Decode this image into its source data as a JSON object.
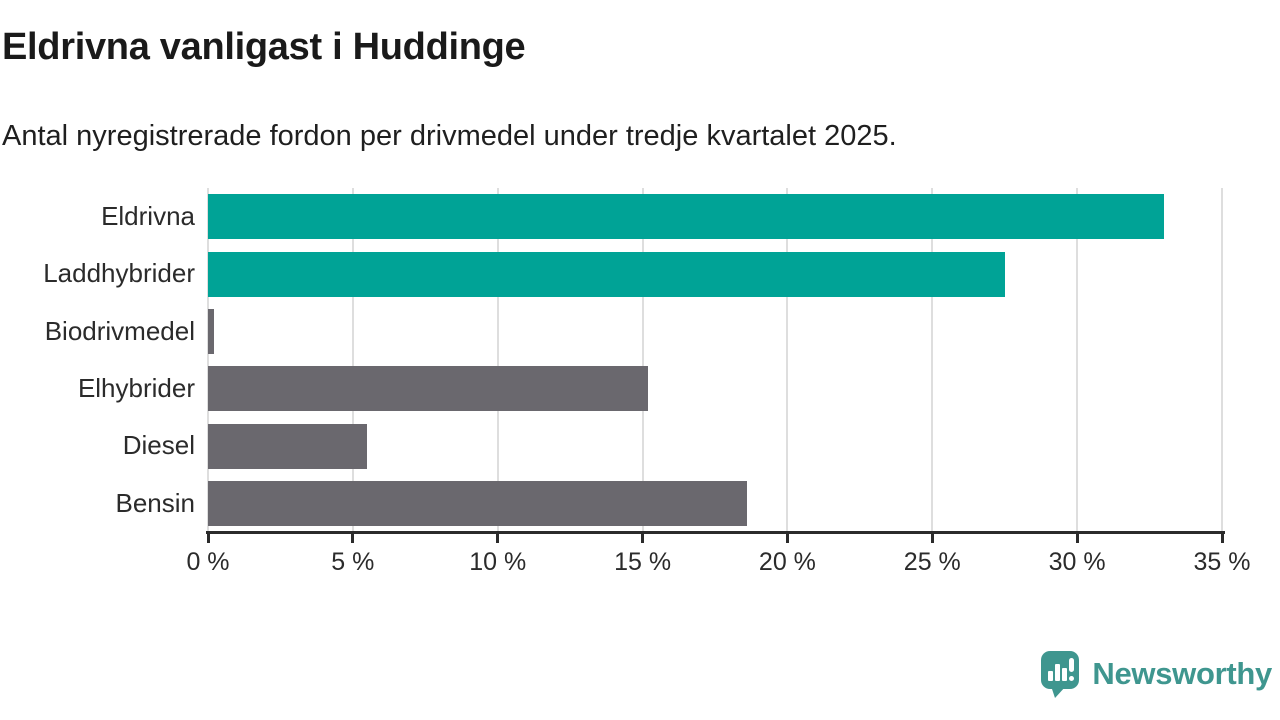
{
  "page": {
    "title": "Eldrivna vanligast i Huddinge",
    "subtitle": "Antal nyregistrerade fordon per drivmedel under tredje kvartalet 2025."
  },
  "chart_data": {
    "type": "bar",
    "orientation": "horizontal",
    "title": "Eldrivna vanligast i Huddinge",
    "subtitle": "Antal nyregistrerade fordon per drivmedel under tredje kvartalet 2025.",
    "categories": [
      "Eldrivna",
      "Laddhybrider",
      "Biodrivmedel",
      "Elhybrider",
      "Diesel",
      "Bensin"
    ],
    "values": [
      33.0,
      27.5,
      0.2,
      15.2,
      5.5,
      18.6
    ],
    "unit": "%",
    "xlim": [
      0,
      35
    ],
    "ticks": [
      0,
      5,
      10,
      15,
      20,
      25,
      30,
      35
    ],
    "tick_labels": [
      "0 %",
      "5 %",
      "10 %",
      "15 %",
      "20 %",
      "25 %",
      "30 %",
      "35 %"
    ],
    "grid": true,
    "legend": false,
    "bar_colors": [
      "#00a396",
      "#00a396",
      "#6a686e",
      "#6a686e",
      "#6a686e",
      "#6a686e"
    ],
    "colors": {
      "highlight": "#00a396",
      "default": "#6a686e",
      "gridline": "#dedede",
      "axis": "#2b2b2b"
    }
  },
  "footer": {
    "brand": "Newsworthy",
    "brand_color": "#3f968f",
    "brand_icon": "speech-bubble-bar-chart-icon"
  }
}
